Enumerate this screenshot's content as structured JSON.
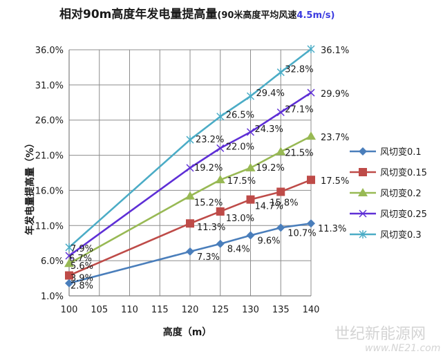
{
  "chart_data": {
    "type": "line",
    "title": "相对90m高度年发电量提高量",
    "subtitle": "(90米高度平均风速",
    "subtitle_accent": "4.5m/s)",
    "xlabel": "高度（m）",
    "ylabel": "年发电量提高量（%）",
    "x": [
      100,
      105,
      110,
      115,
      120,
      125,
      130,
      135,
      140
    ],
    "x_ticks": [
      "100",
      "105",
      "110",
      "115",
      "120",
      "125",
      "130",
      "135",
      "140"
    ],
    "y_ticks": [
      "1.0%",
      "6.0%",
      "11.0%",
      "16.0%",
      "21.0%",
      "26.0%",
      "31.0%",
      "36.0%"
    ],
    "xlim": [
      100,
      140
    ],
    "ylim": [
      1.0,
      36.0
    ],
    "grid": true,
    "legend_position": "right",
    "series": [
      {
        "name": "风切变0.1",
        "color": "#4a7ebb",
        "marker": "diamond",
        "x": [
          100,
          120,
          125,
          130,
          135,
          140
        ],
        "values": [
          2.8,
          7.3,
          8.4,
          9.6,
          10.7,
          11.3
        ],
        "labels": [
          "2.8%",
          "7.3%",
          "8.4%",
          "9.6%",
          "10.7%",
          "11.3%"
        ]
      },
      {
        "name": "风切变0.15",
        "color": "#be4b48",
        "marker": "square",
        "x": [
          100,
          120,
          125,
          130,
          135,
          140
        ],
        "values": [
          3.9,
          11.3,
          13.0,
          14.7,
          15.8,
          17.5
        ],
        "labels": [
          "3.9%",
          "11.3%",
          "13.0%",
          "14.7%",
          "15.8%",
          "17.5%"
        ]
      },
      {
        "name": "风切变0.2",
        "color": "#98b954",
        "marker": "triangle",
        "x": [
          100,
          120,
          125,
          130,
          135,
          140
        ],
        "values": [
          5.6,
          15.2,
          17.5,
          19.2,
          21.5,
          23.7
        ],
        "labels": [
          "5.6%",
          "15.2%",
          "17.5%",
          "19.2%",
          "21.5%",
          "23.7%"
        ]
      },
      {
        "name": "风切变0.25",
        "color": "#5e2fd6",
        "marker": "x",
        "x": [
          100,
          120,
          125,
          130,
          135,
          140
        ],
        "values": [
          6.7,
          19.2,
          22.0,
          24.3,
          27.1,
          29.9
        ],
        "labels": [
          "6.7%",
          "19.2%",
          "22.0%",
          "24.3%",
          "27.1%",
          "29.9%"
        ]
      },
      {
        "name": "风切变0.3",
        "color": "#4bacc6",
        "marker": "star",
        "x": [
          100,
          120,
          125,
          130,
          135,
          140
        ],
        "values": [
          7.9,
          23.2,
          26.5,
          29.4,
          32.8,
          36.1
        ],
        "labels": [
          "7.9%",
          "23.2%",
          "26.5%",
          "29.4%",
          "32.8%",
          "36.1%"
        ]
      }
    ]
  },
  "watermark": {
    "name": "世纪新能源网",
    "url": "www.NE21.com"
  }
}
